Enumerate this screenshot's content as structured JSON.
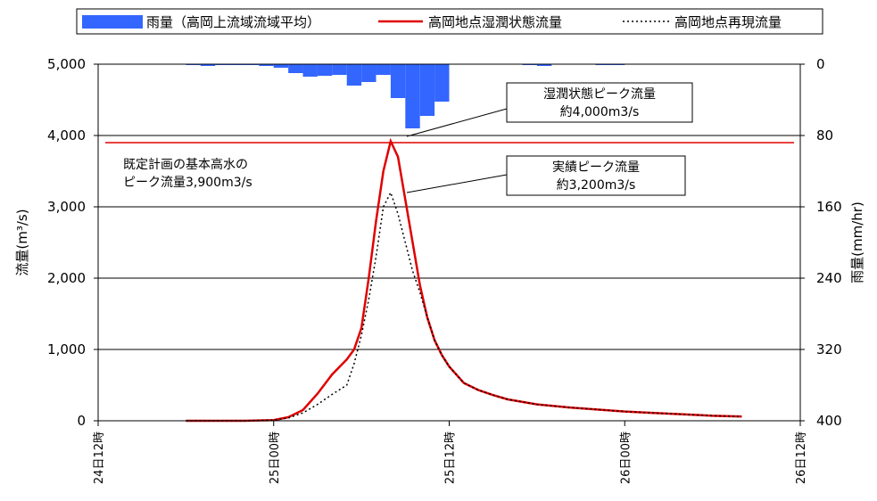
{
  "chart_data": {
    "type": "line",
    "legend": {
      "placement": "top",
      "items": [
        {
          "label": "雨量（高岡上流域流域平均）",
          "kind": "bar",
          "color": "#3366ff"
        },
        {
          "label": "高岡地点湿潤状態流量",
          "kind": "line",
          "color": "#e00000"
        },
        {
          "label": "高岡地点再現流量",
          "kind": "dotted",
          "color": "#000000"
        }
      ]
    },
    "y_left": {
      "label": "流量(m³/s)",
      "ylim": [
        0,
        5000
      ],
      "ticks": [
        "0",
        "1,000",
        "2,000",
        "3,000",
        "4,000",
        "5,000"
      ],
      "tick_values": [
        0,
        1000,
        2000,
        3000,
        4000,
        5000
      ]
    },
    "y_right": {
      "label": "雨量(mm/hr)",
      "ylim": [
        0,
        400
      ],
      "inverted": true,
      "ticks": [
        "0",
        "80",
        "160",
        "240",
        "320",
        "400"
      ],
      "tick_values": [
        0,
        80,
        160,
        240,
        320,
        400
      ]
    },
    "x": {
      "unit": "hours",
      "range": [
        0,
        48
      ],
      "ticks": [
        "24日12時",
        "25日00時",
        "25日12時",
        "26日00時",
        "26日12時"
      ],
      "tick_values": [
        0,
        12,
        24,
        36,
        48
      ]
    },
    "grid": true,
    "reference_line": {
      "value": 3900,
      "color": "#e00000",
      "label": "既定計画の基本高水のピーク流量3,900m3/s"
    },
    "rain": {
      "x": [
        6,
        7,
        8,
        9,
        10,
        11,
        12,
        13,
        14,
        15,
        16,
        17,
        18,
        19,
        20,
        21,
        22,
        23,
        24,
        25,
        26,
        27,
        28,
        29,
        30,
        31,
        32,
        33,
        34,
        35,
        36,
        37,
        38,
        39,
        40,
        41,
        42,
        43,
        44
      ],
      "values": [
        1,
        2,
        1,
        1,
        1,
        2,
        4,
        10,
        14,
        13,
        12,
        24,
        20,
        12,
        38,
        72,
        58,
        42,
        0,
        0,
        0,
        0,
        0,
        1,
        2,
        0,
        0,
        0,
        1,
        1,
        0,
        0,
        0,
        0,
        0,
        0,
        0,
        0,
        0
      ]
    },
    "series": [
      {
        "name": "高岡地点湿潤状態流量",
        "color": "#e00000",
        "style": "solid",
        "x": [
          6,
          10,
          11,
          12,
          13,
          14,
          15,
          16,
          17,
          17.5,
          18,
          18.5,
          19,
          19.5,
          20,
          20.5,
          21,
          21.5,
          22,
          22.5,
          23,
          23.5,
          24,
          25,
          26,
          27,
          28,
          30,
          32,
          34,
          36,
          38,
          40,
          42,
          44
        ],
        "y": [
          0,
          0,
          5,
          10,
          50,
          150,
          380,
          650,
          860,
          1000,
          1300,
          2000,
          2800,
          3500,
          3920,
          3700,
          3100,
          2500,
          1900,
          1450,
          1130,
          920,
          760,
          530,
          430,
          360,
          300,
          230,
          190,
          160,
          130,
          110,
          90,
          70,
          60
        ]
      },
      {
        "name": "高岡地点再現流量",
        "color": "#000000",
        "style": "dotted",
        "x": [
          6,
          10,
          11,
          12,
          13,
          14,
          15,
          16,
          17,
          17.5,
          18,
          18.5,
          19,
          19.5,
          20,
          20.5,
          21,
          21.5,
          22,
          22.5,
          23,
          23.5,
          24,
          25,
          26,
          27,
          28,
          30,
          32,
          34,
          36,
          38,
          40,
          42,
          44
        ],
        "y": [
          0,
          0,
          5,
          10,
          40,
          110,
          230,
          370,
          500,
          800,
          1200,
          1700,
          2300,
          3000,
          3200,
          2900,
          2500,
          2100,
          1800,
          1450,
          1130,
          920,
          760,
          530,
          430,
          360,
          300,
          230,
          190,
          160,
          130,
          110,
          90,
          70,
          60
        ]
      }
    ],
    "annotations": [
      {
        "lines": [
          "湿潤状態ピーク流量",
          "約4,000m3/s"
        ],
        "x": 20,
        "y": 3920
      },
      {
        "lines": [
          "実績ピーク流量",
          "約3,200m3/s"
        ],
        "x": 20,
        "y": 3200
      }
    ]
  }
}
